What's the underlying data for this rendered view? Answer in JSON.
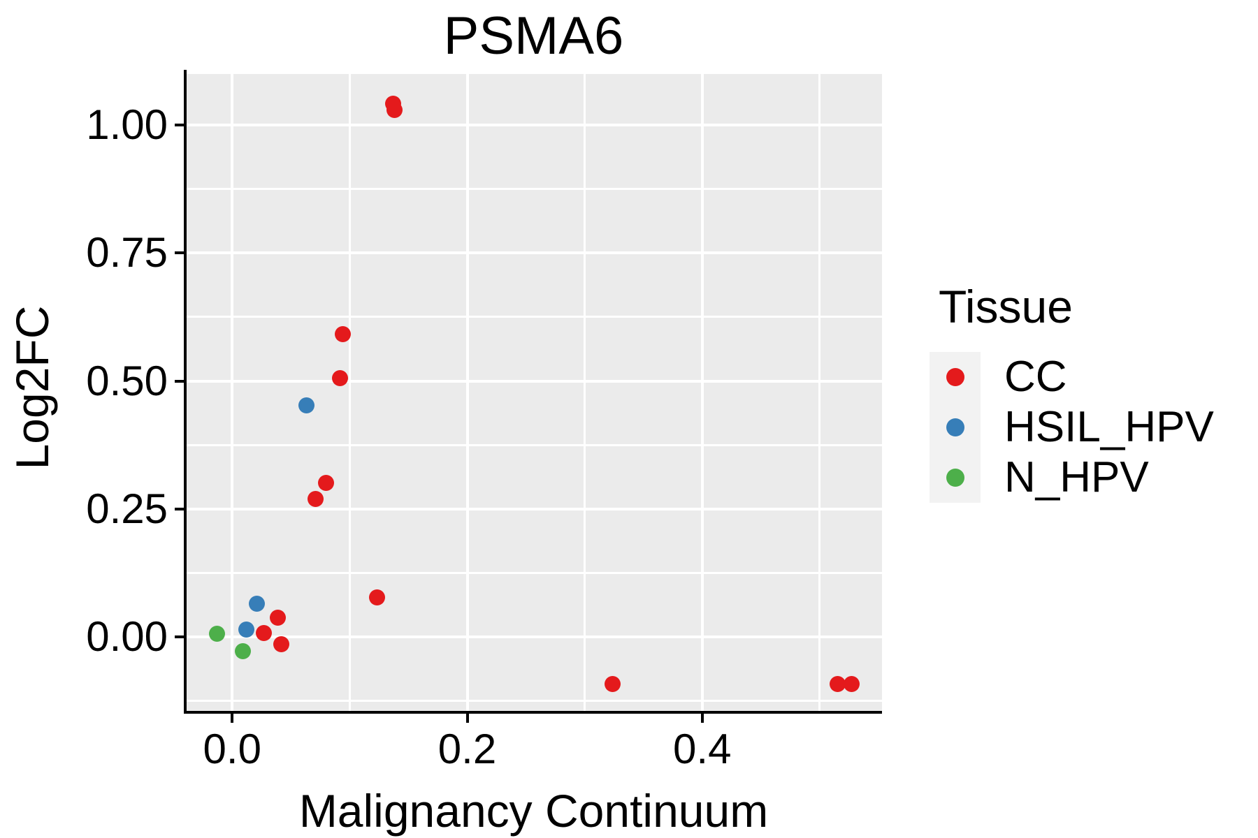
{
  "title": "PSMA6",
  "axes": {
    "x_label": "Malignancy Continuum",
    "y_label": "Log2FC"
  },
  "legend": {
    "title": "Tissue",
    "items": [
      "CC",
      "HSIL_HPV",
      "N_HPV"
    ]
  },
  "colors": {
    "panel_background": "#EBEBEB",
    "grid": "#FFFFFF",
    "axis": "#000000",
    "text": "#000000",
    "legend_key_background": "#F2F2F2",
    "cc_red": "#E41A1C",
    "hsil_hpv_blue": "#377EB8",
    "n_hpv_green": "#4DAF4A"
  },
  "chart_data": {
    "type": "scatter",
    "title": "PSMA6",
    "xlabel": "Malignancy Continuum",
    "ylabel": "Log2FC",
    "legend_title": "Tissue",
    "legend_position": "right",
    "grid": "white major+minor gridlines on gray panel",
    "xlim": [
      -0.04,
      0.553
    ],
    "ylim": [
      -0.147,
      1.0996
    ],
    "x_ticks": [
      {
        "value": 0.0,
        "label": "0.0"
      },
      {
        "value": 0.2,
        "label": "0.2"
      },
      {
        "value": 0.4,
        "label": "0.4"
      }
    ],
    "y_ticks": [
      {
        "value": 0.0,
        "label": "0.00"
      },
      {
        "value": 0.25,
        "label": "0.25"
      },
      {
        "value": 0.5,
        "label": "0.50"
      },
      {
        "value": 0.75,
        "label": "0.75"
      },
      {
        "value": 1.0,
        "label": "1.00"
      }
    ],
    "series": [
      {
        "name": "CC",
        "color": "#E41A1C",
        "points": [
          [
            0.137,
            1.041
          ],
          [
            0.138,
            1.03
          ],
          [
            0.094,
            0.591
          ],
          [
            0.092,
            0.505
          ],
          [
            0.08,
            0.301
          ],
          [
            0.071,
            0.269
          ],
          [
            0.123,
            0.077
          ],
          [
            0.039,
            0.038
          ],
          [
            0.027,
            0.008
          ],
          [
            0.042,
            -0.014
          ],
          [
            0.324,
            -0.092
          ],
          [
            0.515,
            -0.092
          ],
          [
            0.527,
            -0.092
          ]
        ]
      },
      {
        "name": "HSIL_HPV",
        "color": "#377EB8",
        "points": [
          [
            0.063,
            0.452
          ],
          [
            0.021,
            0.065
          ],
          [
            0.012,
            0.015
          ]
        ]
      },
      {
        "name": "N_HPV",
        "color": "#4DAF4A",
        "points": [
          [
            -0.013,
            0.007
          ],
          [
            0.009,
            -0.027
          ]
        ]
      }
    ]
  }
}
